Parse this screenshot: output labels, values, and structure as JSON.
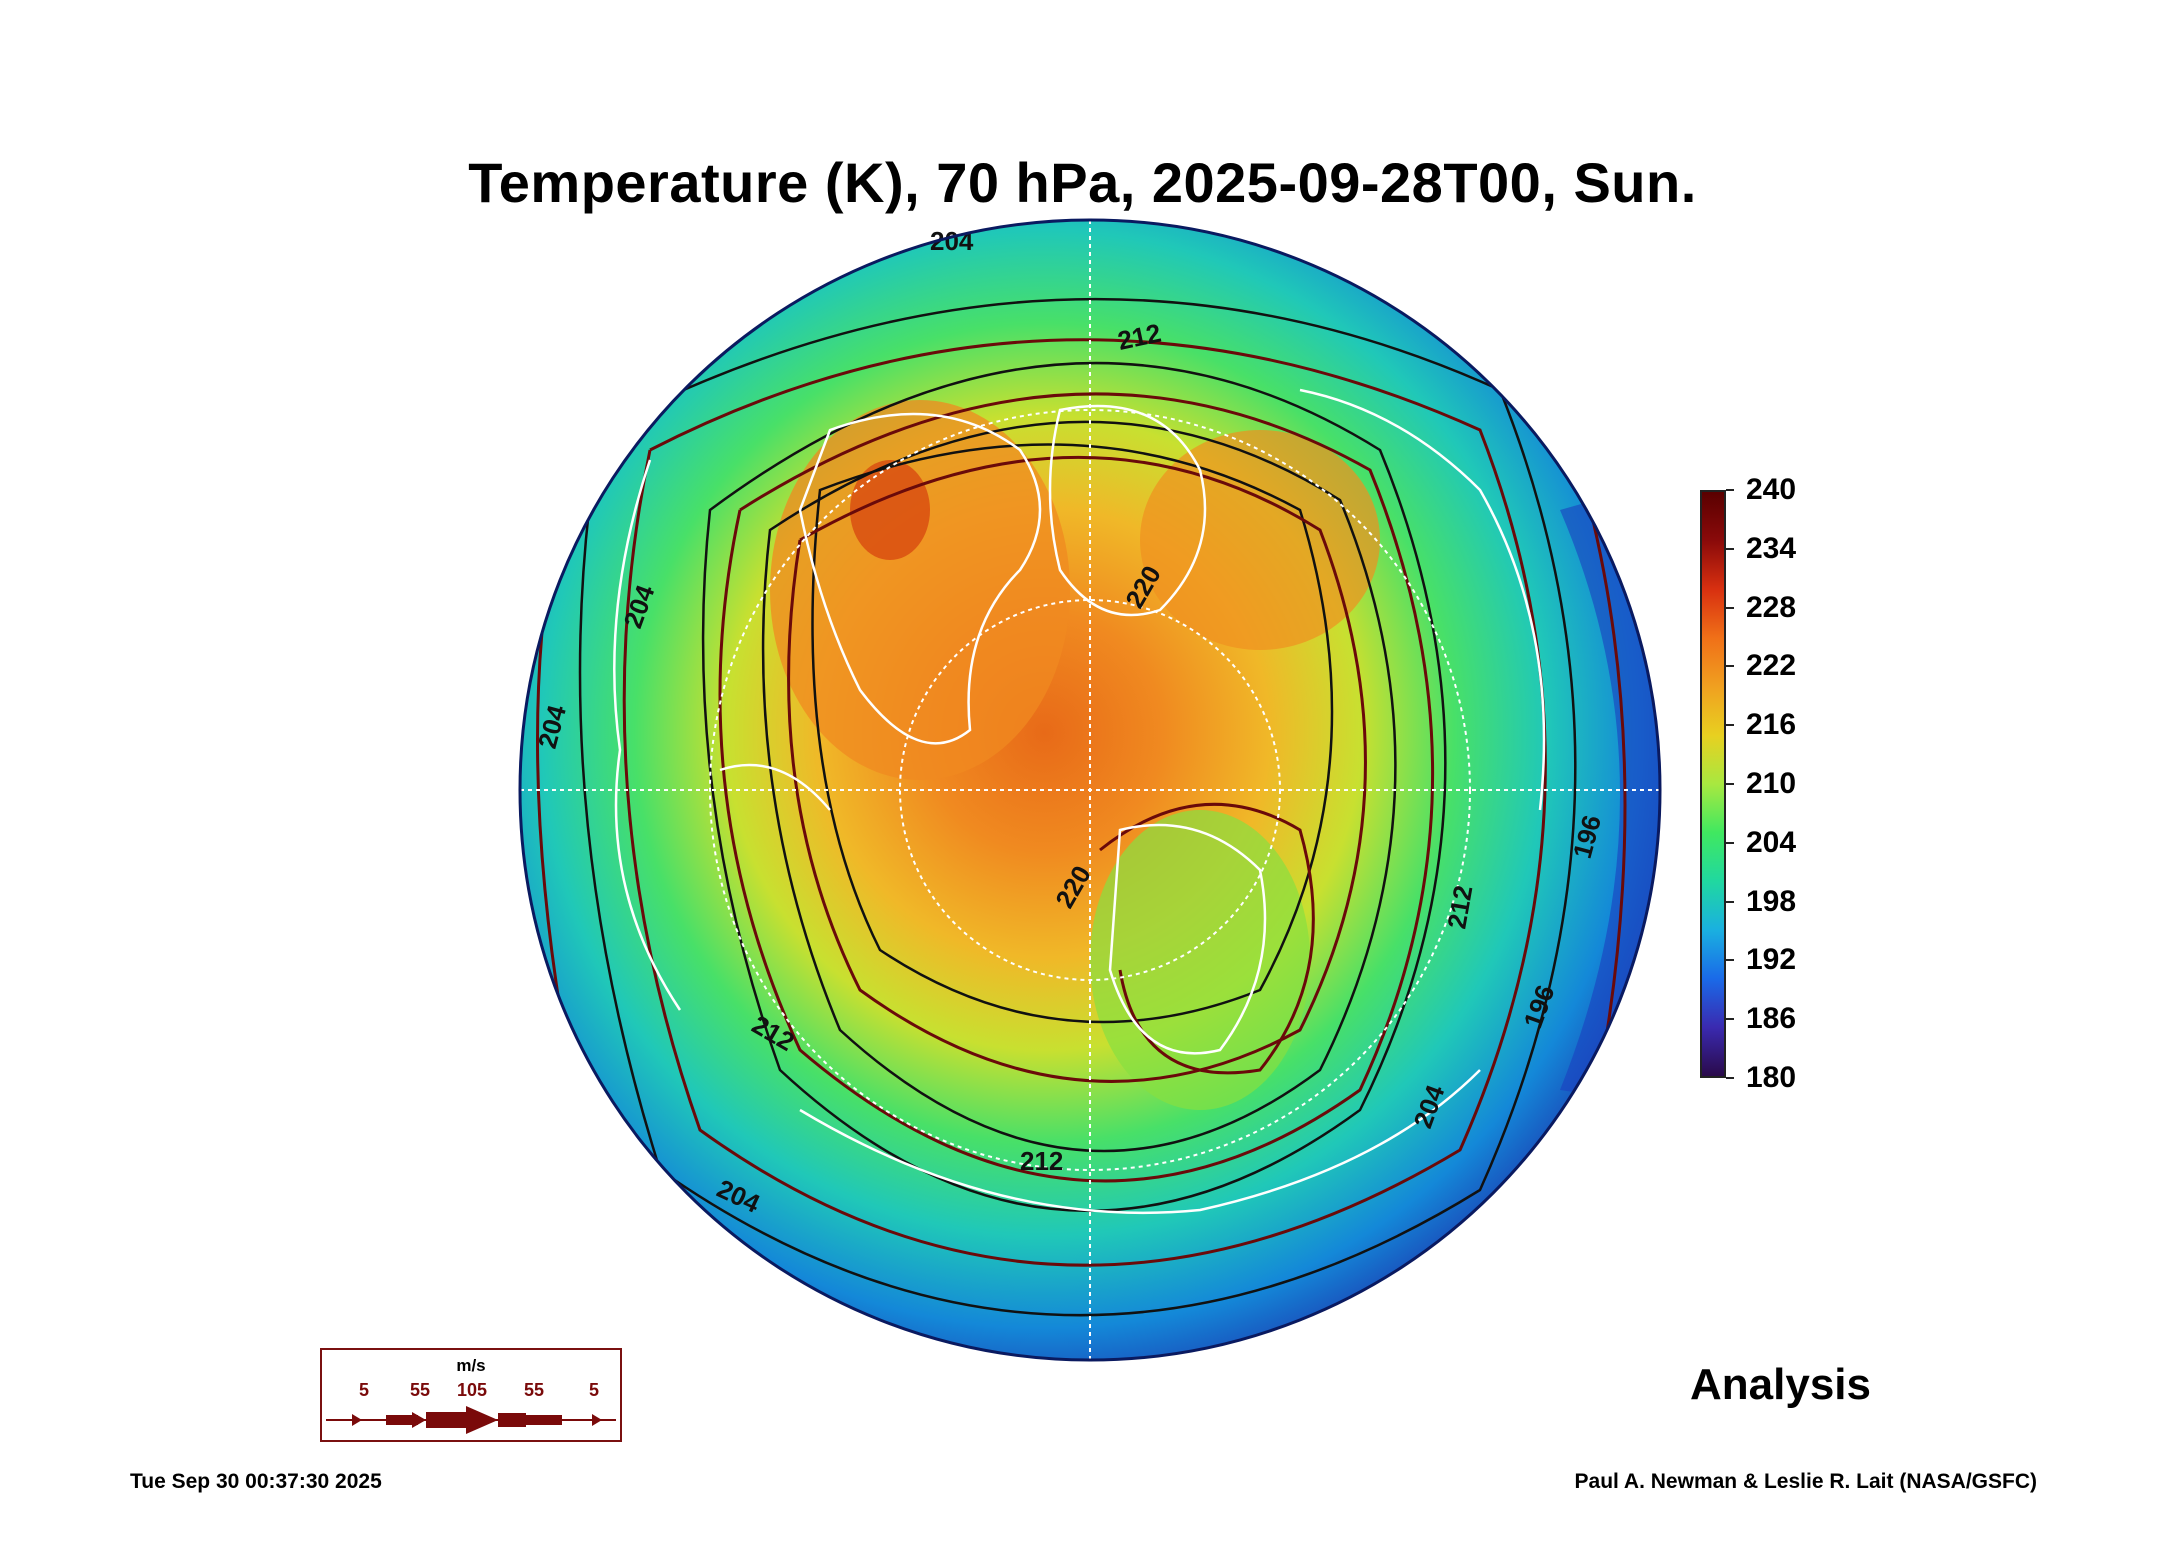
{
  "title": "Temperature (K), 70 hPa, 2025-09-28T00, Sun.",
  "colorbar": {
    "labels": [
      "240",
      "234",
      "228",
      "222",
      "216",
      "210",
      "204",
      "198",
      "192",
      "186",
      "180"
    ],
    "min": 180,
    "max": 240,
    "colors": [
      "#2a0a4a",
      "#3a2ab0",
      "#1a6ae8",
      "#1ab0e0",
      "#20d8a0",
      "#40e860",
      "#a8e840",
      "#e8d020",
      "#f0a020",
      "#f07018",
      "#d83010",
      "#8a0a0a",
      "#5a0000"
    ]
  },
  "map": {
    "contour_labels": [
      "204",
      "212",
      "220",
      "204",
      "212",
      "204",
      "196",
      "196",
      "212",
      "204",
      "212",
      "220",
      "204"
    ],
    "field_colors": {
      "outer": "#1488d8",
      "mid_outer": "#20c8c0",
      "mid": "#3ee070",
      "inner": "#c8e030",
      "warm": "#f0b828",
      "hot": "#f08a20",
      "hottest": "#e05a10",
      "cold_edge": "#1a3ab8"
    },
    "coastline_color": "#ffffff",
    "streamline_color": "#6a0a0a",
    "contour_color": "#111111"
  },
  "wind_key": {
    "unit": "m/s",
    "labels": [
      "5",
      "55",
      "105",
      "55",
      "5"
    ],
    "color": "#7a0a0a"
  },
  "analysis_label": "Analysis",
  "footer": {
    "timestamp": "Tue Sep 30 00:37:30 2025",
    "credit": "Paul A. Newman & Leslie R. Lait (NASA/GSFC)"
  }
}
